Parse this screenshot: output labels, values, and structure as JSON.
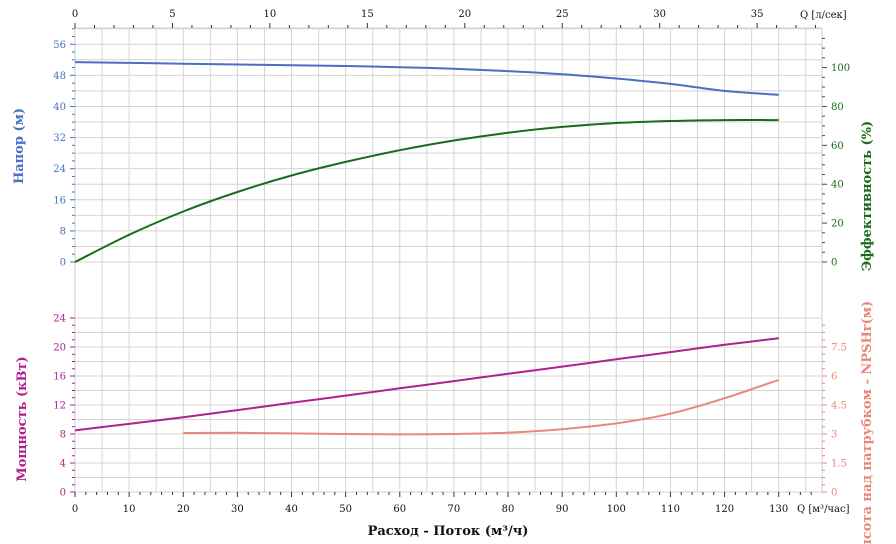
{
  "chart_data": {
    "type": "line",
    "x_axis": {
      "label": "Расход - Поток (м³/ч)",
      "unit": "Q [м³/час]",
      "range": [
        0,
        138
      ],
      "ticks": [
        0,
        10,
        20,
        30,
        40,
        50,
        60,
        70,
        80,
        90,
        100,
        110,
        120,
        130
      ]
    },
    "x_axis_top": {
      "unit": "Q [л/сек]",
      "range": [
        0,
        38.33
      ],
      "ticks": [
        0,
        5,
        10,
        15,
        20,
        25,
        30,
        35
      ]
    },
    "panels": [
      {
        "left_axis": {
          "label": "Напор (м)",
          "color": "#4a6fc4",
          "range": [
            0,
            60
          ],
          "ticks": [
            0,
            8,
            16,
            24,
            32,
            40,
            48,
            56
          ]
        },
        "right_axis": {
          "label": "Эффективность (%)",
          "color": "#1a6b1a",
          "range": [
            0,
            120
          ],
          "ticks": [
            0,
            20,
            40,
            60,
            80,
            100
          ]
        },
        "series": [
          {
            "axis": "left",
            "color": "#4a6fc4",
            "x": [
              0,
              10,
              20,
              30,
              40,
              50,
              60,
              70,
              80,
              90,
              100,
              110,
              120,
              130
            ],
            "y": [
              51.4,
              51.2,
              51.0,
              50.8,
              50.6,
              50.4,
              50.1,
              49.7,
              49.1,
              48.3,
              47.2,
              45.8,
              44.0,
              43.0
            ]
          },
          {
            "axis": "right",
            "color": "#1a6b1a",
            "x": [
              0,
              10,
              20,
              30,
              40,
              50,
              60,
              70,
              80,
              90,
              100,
              110,
              120,
              130
            ],
            "y": [
              0,
              14,
              26,
              36,
              44.5,
              51.5,
              57.5,
              62.5,
              66.5,
              69.5,
              71.5,
              72.5,
              73,
              73
            ]
          }
        ]
      },
      {
        "left_axis": {
          "label": "Мощность (кВт)",
          "color": "#b0218f",
          "range": [
            0,
            24
          ],
          "ticks": [
            0,
            4,
            8,
            12,
            16,
            20,
            24
          ]
        },
        "right_axis": {
          "label": "Высота над патрубком - NPSHr(м)",
          "color": "#e8877a",
          "range": [
            0,
            9
          ],
          "ticks": [
            "0",
            "1.5",
            "3",
            "4.5",
            "6",
            "7.5"
          ]
        },
        "series": [
          {
            "axis": "left",
            "color": "#b0218f",
            "x": [
              0,
              10,
              20,
              30,
              40,
              50,
              60,
              70,
              80,
              90,
              100,
              110,
              120,
              130
            ],
            "y": [
              8.5,
              9.4,
              10.3,
              11.3,
              12.3,
              13.3,
              14.3,
              15.3,
              16.3,
              17.3,
              18.3,
              19.3,
              20.3,
              21.2
            ]
          },
          {
            "axis": "right",
            "color": "#e8877a",
            "x": [
              20,
              30,
              40,
              50,
              60,
              70,
              80,
              90,
              100,
              110,
              120,
              130
            ],
            "y": [
              3.05,
              3.06,
              3.03,
              3.0,
              2.98,
              3.0,
              3.07,
              3.25,
              3.55,
              4.05,
              4.85,
              5.8
            ]
          }
        ]
      }
    ]
  }
}
